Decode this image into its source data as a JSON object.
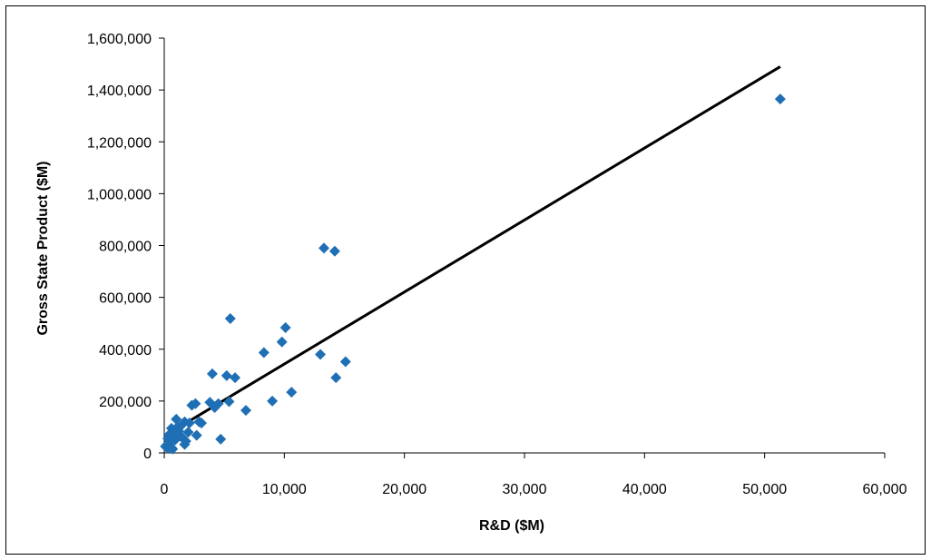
{
  "chart_data": {
    "type": "scatter",
    "title": "",
    "xlabel": "R&D ($M)",
    "ylabel": "Gross State Product ($M)",
    "xlim": [
      0,
      60000
    ],
    "ylim": [
      0,
      1600000
    ],
    "x_ticks": [
      "0",
      "10,000",
      "20,000",
      "30,000",
      "40,000",
      "50,000",
      "60,000"
    ],
    "y_ticks": [
      "0",
      "200,000",
      "400,000",
      "600,000",
      "800,000",
      "1,000,000",
      "1,200,000",
      "1,400,000",
      "1,600,000"
    ],
    "x_tick_values": [
      0,
      10000,
      20000,
      30000,
      40000,
      50000,
      60000
    ],
    "y_tick_values": [
      0,
      200000,
      400000,
      600000,
      800000,
      1000000,
      1200000,
      1400000,
      1600000
    ],
    "grid": false,
    "legend": "none",
    "marker_color": "#1F6FB5",
    "line_color": "#000000",
    "series": [
      {
        "type": "scatter",
        "points": [
          [
            51300,
            1365000
          ],
          [
            13300,
            790000
          ],
          [
            14200,
            778000
          ],
          [
            5500,
            518000
          ],
          [
            10100,
            483000
          ],
          [
            9800,
            428000
          ],
          [
            8300,
            387000
          ],
          [
            13000,
            380000
          ],
          [
            15100,
            352000
          ],
          [
            4000,
            305000
          ],
          [
            5200,
            298000
          ],
          [
            5900,
            290000
          ],
          [
            14300,
            290000
          ],
          [
            10600,
            234000
          ],
          [
            9000,
            200000
          ],
          [
            5400,
            198000
          ],
          [
            3800,
            195000
          ],
          [
            2600,
            190000
          ],
          [
            2300,
            184000
          ],
          [
            4500,
            190000
          ],
          [
            4200,
            175000
          ],
          [
            6800,
            164000
          ],
          [
            2900,
            120000
          ],
          [
            1700,
            120000
          ],
          [
            1000,
            130000
          ],
          [
            2100,
            115000
          ],
          [
            1400,
            105000
          ],
          [
            600,
            95000
          ],
          [
            1200,
            85000
          ],
          [
            2000,
            80000
          ],
          [
            800,
            75000
          ],
          [
            400,
            70000
          ],
          [
            2700,
            68000
          ],
          [
            1500,
            60000
          ],
          [
            300,
            55000
          ],
          [
            900,
            50000
          ],
          [
            1800,
            45000
          ],
          [
            500,
            40000
          ],
          [
            1700,
            33000
          ],
          [
            200,
            30000
          ],
          [
            100,
            25000
          ],
          [
            600,
            20000
          ],
          [
            4700,
            53000
          ],
          [
            300,
            18000
          ],
          [
            700,
            15000
          ],
          [
            1100,
            100000
          ],
          [
            3100,
            115000
          ],
          [
            1300,
            65000
          ]
        ]
      },
      {
        "type": "line",
        "name": "",
        "points": [
          [
            0,
            65000
          ],
          [
            51300,
            1490000
          ]
        ]
      }
    ]
  }
}
